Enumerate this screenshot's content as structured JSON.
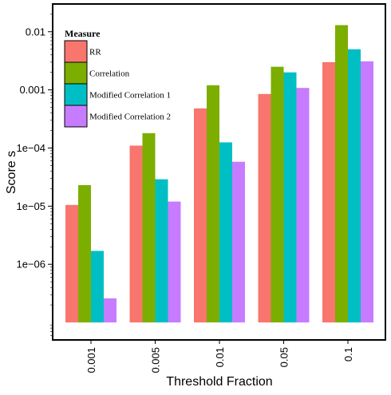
{
  "chart_data": {
    "type": "bar",
    "xlabel": "Threshold Fraction",
    "ylabel": "Score s",
    "y_scale": "log",
    "ylim": [
      5e-08,
      0.03
    ],
    "bar_base": 1e-07,
    "categories": [
      "0.001",
      "0.005",
      "0.01",
      "0.05",
      "0.1"
    ],
    "y_ticks": [
      {
        "value": 1e-06,
        "label": "1e−06"
      },
      {
        "value": 1e-05,
        "label": "1e−05"
      },
      {
        "value": 0.0001,
        "label": "1e−04"
      },
      {
        "value": 0.001,
        "label": "0.001"
      },
      {
        "value": 0.01,
        "label": "0.01"
      }
    ],
    "grid": false,
    "legend": {
      "title": "Measure",
      "placement": "top-left"
    },
    "series": [
      {
        "name": "RR",
        "color": "#F8766D",
        "values": [
          1.05e-05,
          0.00011,
          0.00048,
          0.00085,
          0.003
        ]
      },
      {
        "name": "Correlation",
        "color": "#7CAE00",
        "values": [
          2.3e-05,
          0.00018,
          0.0012,
          0.0025,
          0.013
        ]
      },
      {
        "name": "Modified Correlation 1",
        "color": "#00BFC4",
        "values": [
          1.7e-06,
          2.9e-05,
          0.000125,
          0.002,
          0.005
        ]
      },
      {
        "name": "Modified Correlation 2",
        "color": "#C77CFF",
        "values": [
          2.6e-07,
          1.2e-05,
          5.8e-05,
          0.00108,
          0.0031
        ]
      }
    ]
  }
}
